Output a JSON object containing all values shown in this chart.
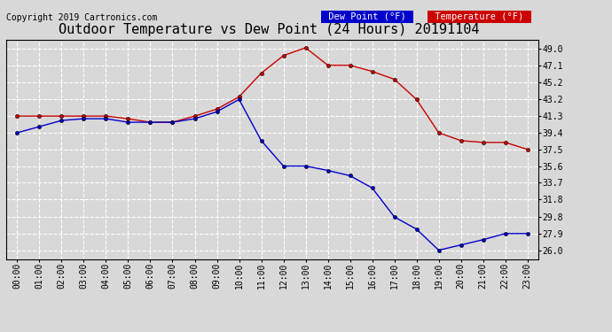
{
  "title": "Outdoor Temperature vs Dew Point (24 Hours) 20191104",
  "copyright": "Copyright 2019 Cartronics.com",
  "legend_dew": "Dew Point (°F)",
  "legend_temp": "Temperature (°F)",
  "hours": [
    "00:00",
    "01:00",
    "02:00",
    "03:00",
    "04:00",
    "05:00",
    "06:00",
    "07:00",
    "08:00",
    "09:00",
    "10:00",
    "11:00",
    "12:00",
    "13:00",
    "14:00",
    "15:00",
    "16:00",
    "17:00",
    "18:00",
    "19:00",
    "20:00",
    "21:00",
    "22:00",
    "23:00"
  ],
  "temperature": [
    41.3,
    41.3,
    41.3,
    41.3,
    41.3,
    41.0,
    40.6,
    40.6,
    41.3,
    42.1,
    43.5,
    46.2,
    48.2,
    49.1,
    47.1,
    47.1,
    46.4,
    45.5,
    43.2,
    39.4,
    38.5,
    38.3,
    38.3,
    37.5
  ],
  "dew_point": [
    39.4,
    40.1,
    40.8,
    41.0,
    41.0,
    40.6,
    40.6,
    40.6,
    41.0,
    41.8,
    43.2,
    38.5,
    35.6,
    35.6,
    35.1,
    34.5,
    33.1,
    29.8,
    28.4,
    26.0,
    26.6,
    27.2,
    27.9,
    27.9
  ],
  "ylim_min": 25.0,
  "ylim_max": 50.0,
  "yticks": [
    26.0,
    27.9,
    29.8,
    31.8,
    33.7,
    35.6,
    37.5,
    39.4,
    41.3,
    43.2,
    45.2,
    47.1,
    49.0
  ],
  "temp_color": "#cc0000",
  "dew_color": "#0000cc",
  "bg_color": "#d8d8d8",
  "plot_bg": "#d8d8d8",
  "grid_color": "white",
  "title_fontsize": 11,
  "copyright_fontsize": 7,
  "tick_fontsize": 7,
  "legend_fontsize": 7.5
}
